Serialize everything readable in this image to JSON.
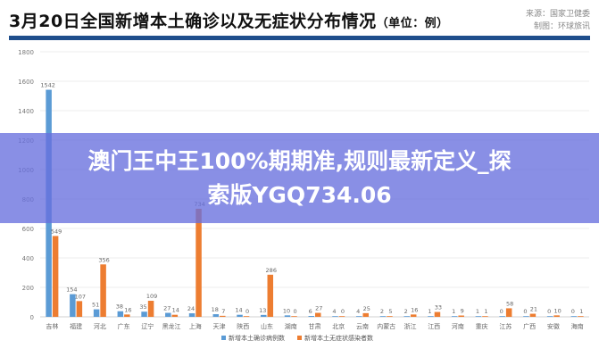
{
  "header": {
    "title": "3月20日全国新增本土确诊以及无症状分布情况",
    "unit": "（单位：例）",
    "source_line1": "来源：国家卫健委",
    "source_line2": "制图：环球旅讯"
  },
  "banner": {
    "line1": "澳门王中王100%期期准,规则最新定义_探",
    "line2": "索版YGQ734.06"
  },
  "chart_data": {
    "type": "bar",
    "title": "3月20日全国新增本土确诊以及无症状分布情况",
    "ylim": [
      0,
      1800
    ],
    "yticks": [
      0,
      200,
      400,
      600,
      800,
      1000,
      1200,
      1400,
      1600,
      1800
    ],
    "grid": true,
    "legend_position": "bottom",
    "categories": [
      "吉林",
      "福建",
      "河北",
      "广东",
      "辽宁",
      "黑龙江",
      "上海",
      "天津",
      "陕西",
      "山东",
      "湖南",
      "甘肃",
      "北京",
      "云南",
      "内蒙古",
      "浙江",
      "江西",
      "河南",
      "重庆",
      "江苏",
      "广西",
      "安徽",
      "海南"
    ],
    "series": [
      {
        "name": "新增本土确诊病例数",
        "color": "#5b9bd5",
        "values": [
          1542,
          154,
          51,
          38,
          35,
          27,
          24,
          18,
          14,
          13,
          10,
          6,
          4,
          4,
          2,
          2,
          1,
          1,
          1,
          0,
          0,
          0,
          0
        ]
      },
      {
        "name": "新增本土无症状感染者数",
        "color": "#ed7d31",
        "values": [
          549,
          107,
          356,
          16,
          109,
          14,
          734,
          7,
          0,
          286,
          0,
          27,
          0,
          25,
          5,
          16,
          33,
          9,
          1,
          58,
          21,
          10,
          1
        ]
      }
    ]
  }
}
